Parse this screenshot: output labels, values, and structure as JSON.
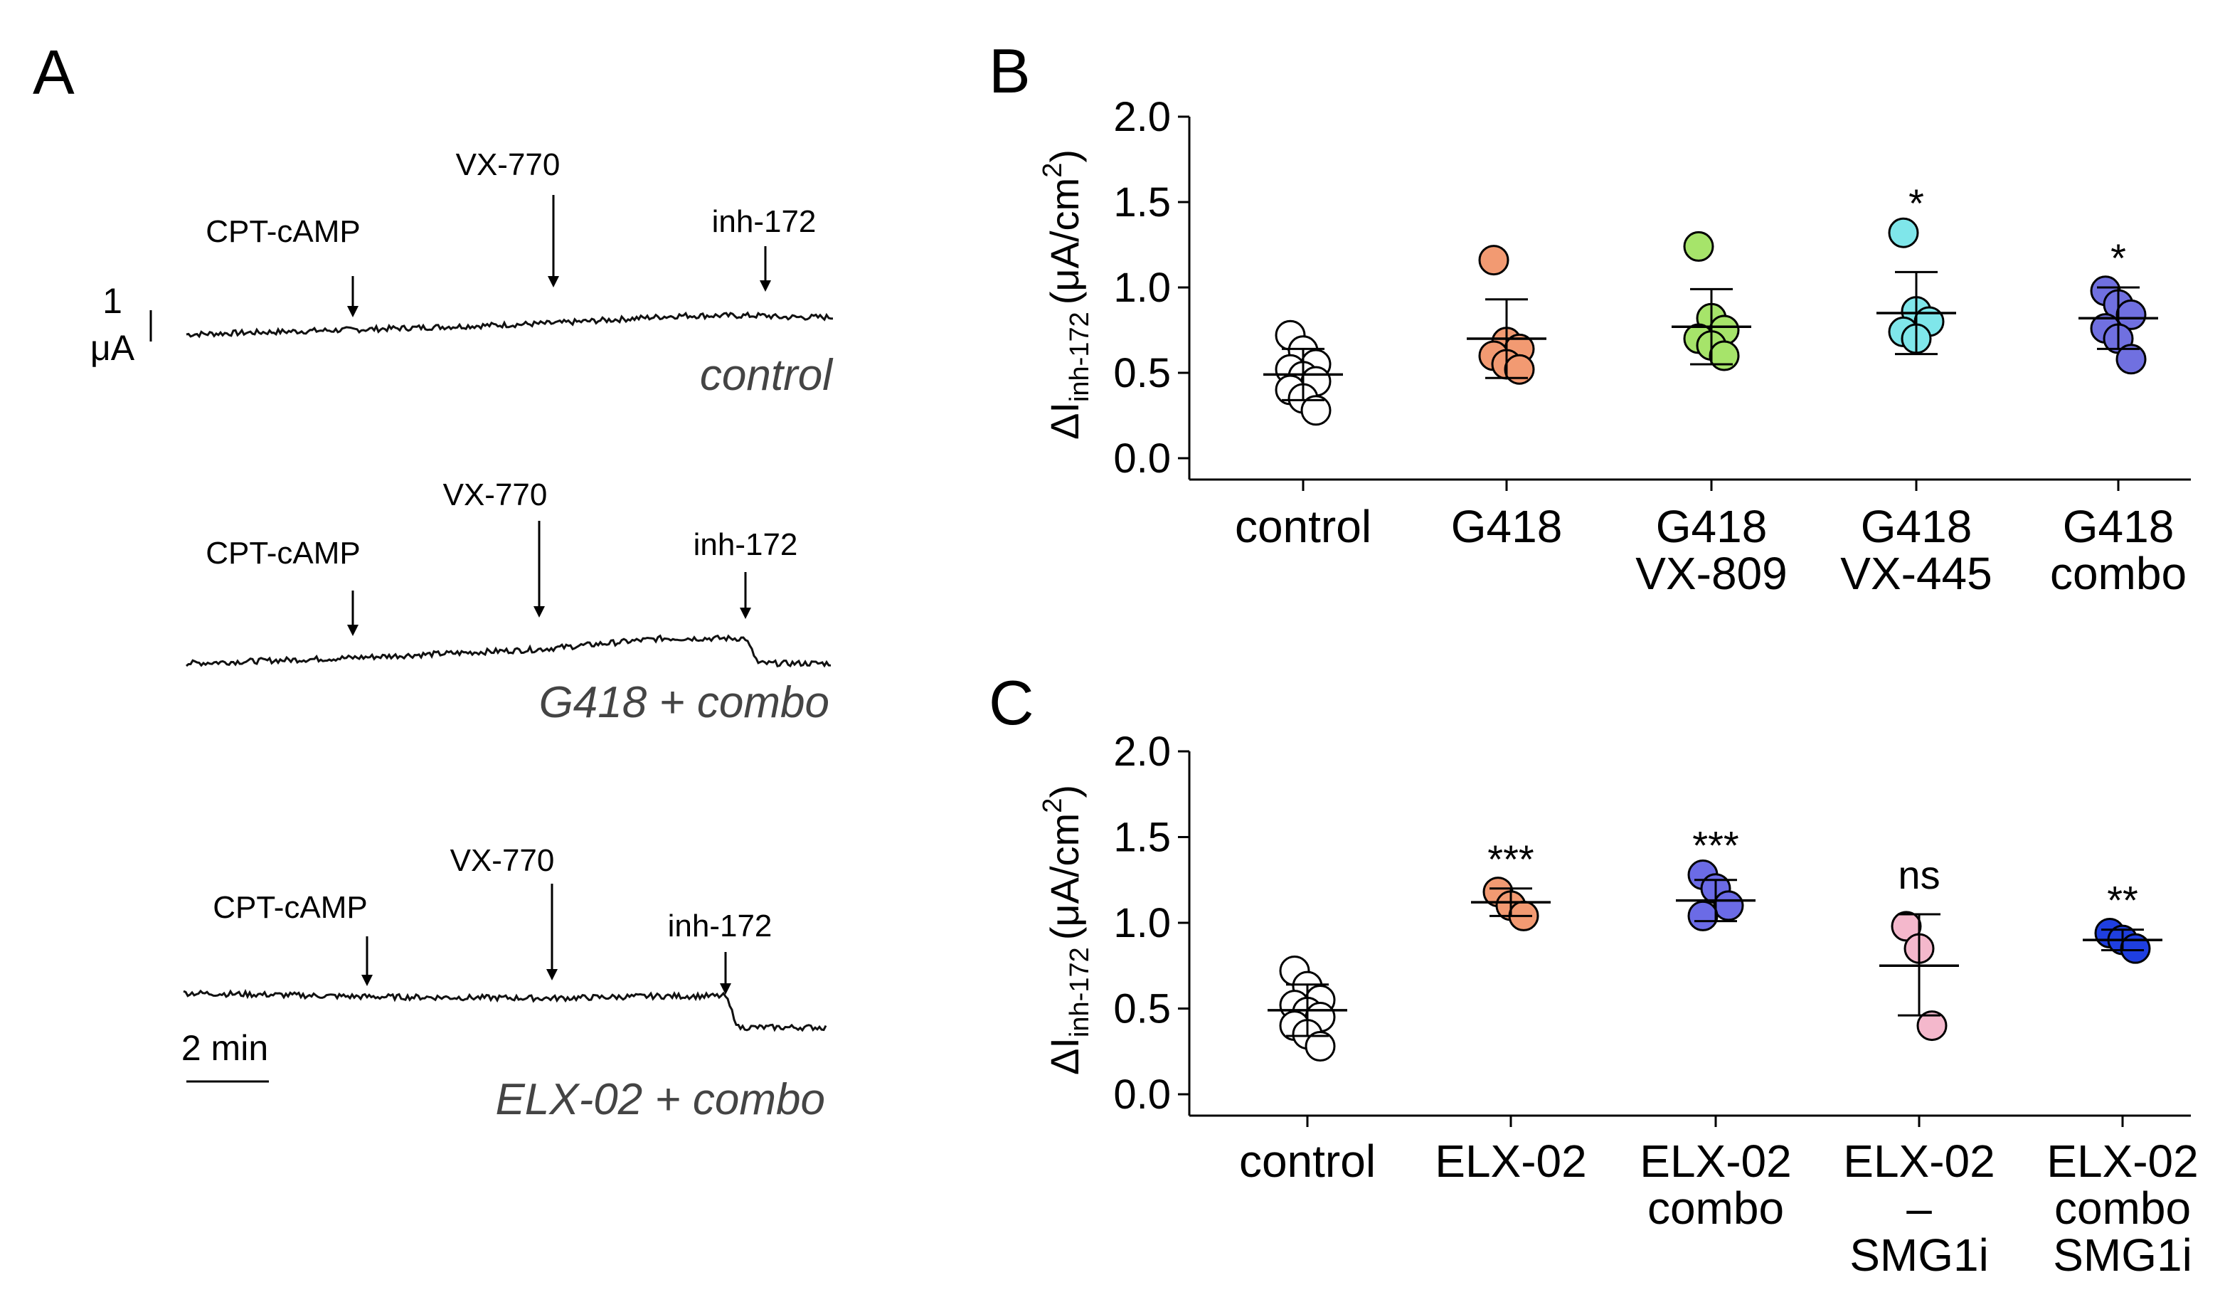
{
  "panelA": {
    "label": "A",
    "scale_current_value": "1",
    "scale_current_unit": "μA",
    "scale_time": "2 min",
    "traces": [
      {
        "condition": "control",
        "additions": [
          "CPT-cAMP",
          "VX-770",
          "inh-172"
        ],
        "baseline_start_uA": -0.5,
        "after_cptcamp_uA": -0.25,
        "after_vx770_uA": 0.1,
        "after_inh172_uA": 0.05
      },
      {
        "condition": "G418 + combo",
        "additions": [
          "CPT-cAMP",
          "VX-770",
          "inh-172"
        ],
        "baseline_start_uA": -0.6,
        "after_cptcamp_uA": -0.3,
        "after_vx770_uA": 0.2,
        "after_inh172_uA": -0.6
      },
      {
        "condition": "ELX-02 + combo",
        "additions": [
          "CPT-cAMP",
          "VX-770",
          "inh-172"
        ],
        "baseline_start_uA": 0.1,
        "after_cptcamp_uA": -0.1,
        "after_vx770_uA": 0.0,
        "after_inh172_uA": -1.0
      }
    ]
  },
  "chart_data": [
    {
      "type": "scatter",
      "panel": "B",
      "ylabel": "ΔI",
      "ylabel_sub": "inh-172",
      "ylabel_unit": "(μA/cm",
      "ylabel_sup": "2",
      "ylabel_close": ")",
      "ylim": [
        0,
        2
      ],
      "yticks": [
        "0.0",
        "0.5",
        "1.0",
        "1.5",
        "2.0"
      ],
      "ytick_values": [
        0,
        0.5,
        1.0,
        1.5,
        2.0
      ],
      "groups": [
        {
          "label_lines": [
            "control"
          ],
          "color": "#ffffff",
          "points": [
            0.72,
            0.63,
            0.55,
            0.52,
            0.48,
            0.45,
            0.4,
            0.35,
            0.28
          ],
          "mean": 0.49,
          "sd_lo": 0.34,
          "sd_hi": 0.64,
          "sig": ""
        },
        {
          "label_lines": [
            "G418"
          ],
          "color": "#f29a72",
          "points": [
            1.16,
            0.68,
            0.64,
            0.6,
            0.55,
            0.52
          ],
          "mean": 0.7,
          "sd_lo": 0.47,
          "sd_hi": 0.93,
          "sig": ""
        },
        {
          "label_lines": [
            "G418",
            "VX-809"
          ],
          "color": "#a6e46a",
          "points": [
            1.24,
            0.82,
            0.75,
            0.7,
            0.66,
            0.6
          ],
          "mean": 0.77,
          "sd_lo": 0.55,
          "sd_hi": 0.99,
          "sig": ""
        },
        {
          "label_lines": [
            "G418",
            "VX-445"
          ],
          "color": "#7fe6ea",
          "points": [
            1.32,
            0.86,
            0.8,
            0.74,
            0.7
          ],
          "mean": 0.85,
          "sd_lo": 0.61,
          "sd_hi": 1.09,
          "sig": "*"
        },
        {
          "label_lines": [
            "G418",
            "combo"
          ],
          "color": "#7070e0",
          "points": [
            0.98,
            0.9,
            0.84,
            0.76,
            0.7,
            0.58
          ],
          "mean": 0.82,
          "sd_lo": 0.64,
          "sd_hi": 1.0,
          "sig": "*"
        }
      ]
    },
    {
      "type": "scatter",
      "panel": "C",
      "ylabel": "ΔI",
      "ylabel_sub": "inh-172",
      "ylabel_unit": "(μA/cm",
      "ylabel_sup": "2",
      "ylabel_close": ")",
      "ylim": [
        0,
        2
      ],
      "yticks": [
        "0.0",
        "0.5",
        "1.0",
        "1.5",
        "2.0"
      ],
      "ytick_values": [
        0,
        0.5,
        1.0,
        1.5,
        2.0
      ],
      "groups": [
        {
          "label_lines": [
            "control"
          ],
          "color": "#ffffff",
          "points": [
            0.72,
            0.63,
            0.55,
            0.52,
            0.48,
            0.45,
            0.4,
            0.35,
            0.28
          ],
          "mean": 0.49,
          "sd_lo": 0.34,
          "sd_hi": 0.64,
          "sig": ""
        },
        {
          "label_lines": [
            "ELX-02"
          ],
          "color": "#f29a72",
          "points": [
            1.18,
            1.1,
            1.04
          ],
          "mean": 1.12,
          "sd_lo": 1.04,
          "sd_hi": 1.2,
          "sig": "***"
        },
        {
          "label_lines": [
            "ELX-02",
            "combo"
          ],
          "color": "#6b6be6",
          "points": [
            1.28,
            1.2,
            1.1,
            1.04
          ],
          "mean": 1.13,
          "sd_lo": 1.01,
          "sd_hi": 1.25,
          "sig": "***"
        },
        {
          "label_lines": [
            "ELX-02",
            "–",
            "SMG1i"
          ],
          "color": "#f4b8cc",
          "points": [
            0.98,
            0.85,
            0.4
          ],
          "mean": 0.75,
          "sd_lo": 0.46,
          "sd_hi": 1.05,
          "sig": "ns"
        },
        {
          "label_lines": [
            "ELX-02",
            "combo",
            "SMG1i"
          ],
          "color": "#1f3fe0",
          "points": [
            0.94,
            0.9,
            0.85
          ],
          "mean": 0.9,
          "sd_lo": 0.84,
          "sd_hi": 0.96,
          "sig": "**"
        }
      ]
    }
  ]
}
